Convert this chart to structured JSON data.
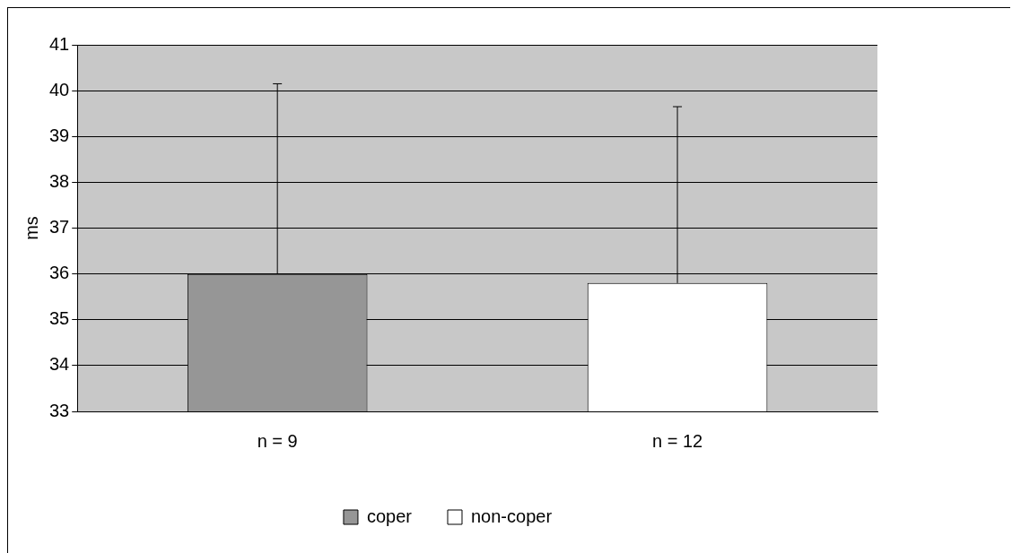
{
  "chart_data": {
    "type": "bar",
    "ylabel": "ms",
    "categories": [
      "n = 9",
      "n = 12"
    ],
    "series": [
      {
        "name": "coper",
        "color": "#969696",
        "values": [
          36.0,
          null
        ],
        "errors": [
          [
            36.0,
            40.15
          ],
          null
        ]
      },
      {
        "name": "non-coper",
        "color": "#ffffff",
        "values": [
          null,
          35.8
        ],
        "errors": [
          null,
          [
            35.8,
            39.65
          ]
        ]
      }
    ],
    "ylim": [
      33,
      41
    ],
    "yticks": [
      33,
      34,
      35,
      36,
      37,
      38,
      39,
      40,
      41
    ],
    "grid": "y",
    "legend": "bottom"
  }
}
